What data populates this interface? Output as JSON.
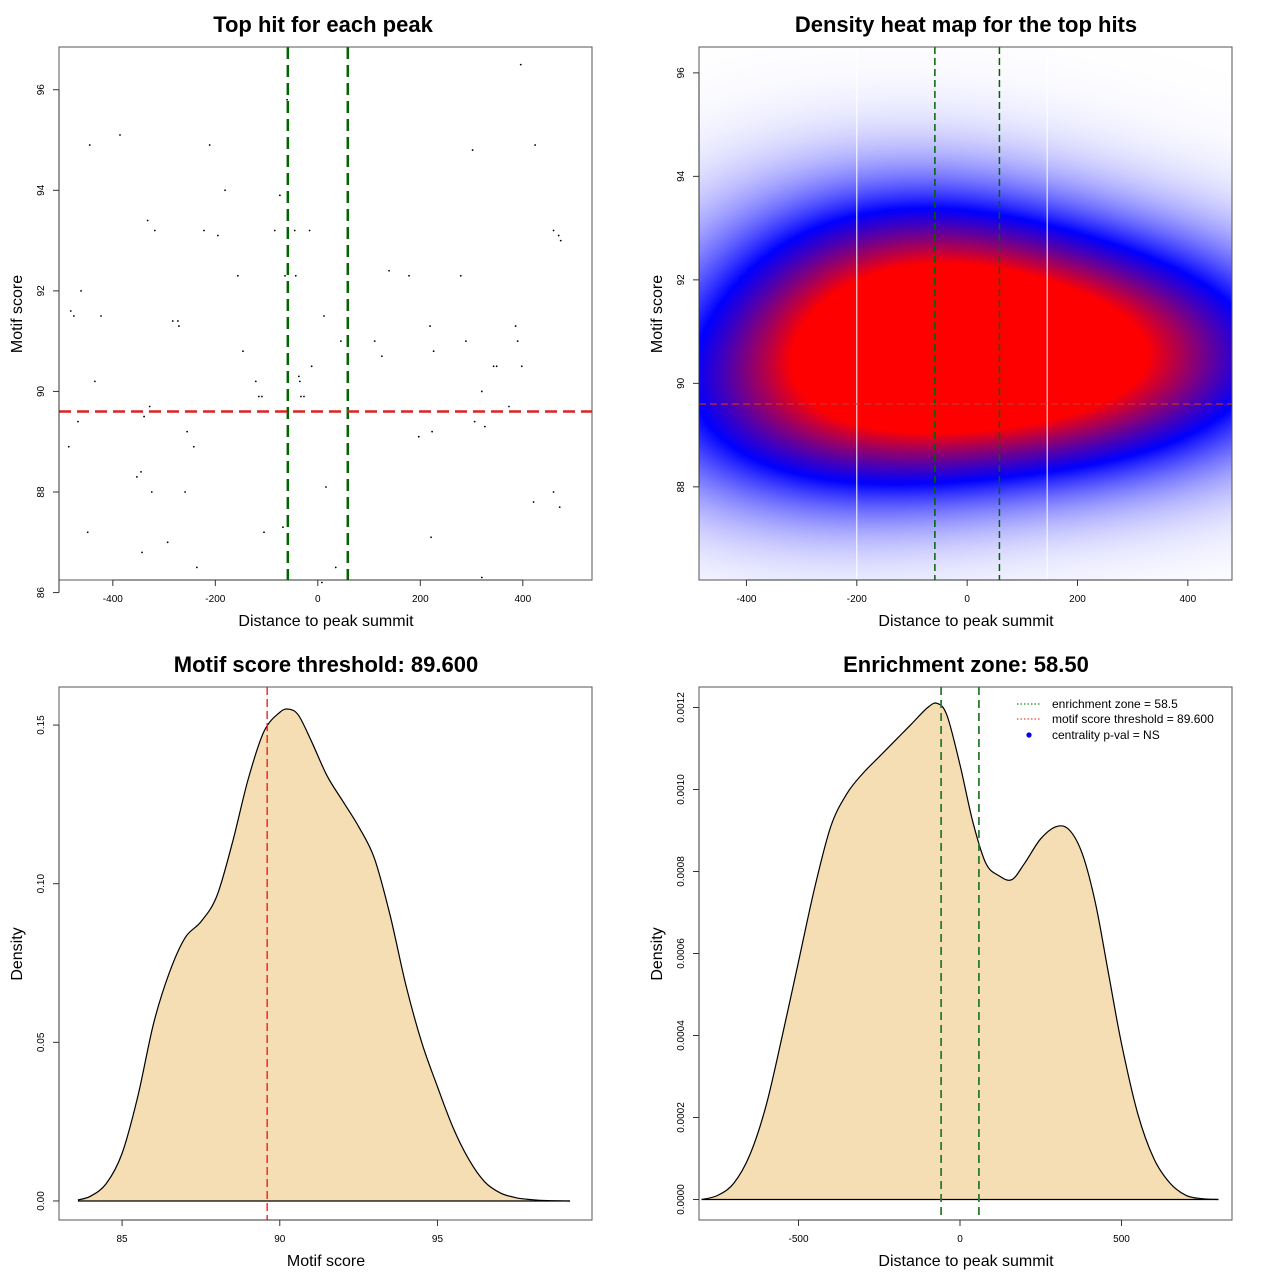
{
  "chart_data": [
    {
      "id": "scatter",
      "type": "scatter",
      "title": "Top hit for each peak",
      "xlabel": "Distance to peak summit",
      "ylabel": "Motif score",
      "xlim": [
        -505,
        535
      ],
      "ylim": [
        86.25,
        96.85
      ],
      "xticks": [
        -400,
        -200,
        0,
        200,
        400
      ],
      "yticks": [
        86,
        88,
        90,
        92,
        94,
        96
      ],
      "grid": false,
      "vlines": {
        "values": [
          -58.5,
          58.5
        ],
        "color": "#006400",
        "style": "dashed"
      },
      "hline": {
        "value": 89.6,
        "color": "#dd2222",
        "style": "dashed"
      },
      "points": [
        [
          -486,
          88.9
        ],
        [
          -482,
          91.6
        ],
        [
          -476,
          91.5
        ],
        [
          -468,
          89.4
        ],
        [
          -462,
          92.0
        ],
        [
          -449,
          87.2
        ],
        [
          -445,
          94.9
        ],
        [
          -435,
          90.2
        ],
        [
          -423,
          91.5
        ],
        [
          -386,
          95.1
        ],
        [
          -353,
          88.3
        ],
        [
          -345,
          88.4
        ],
        [
          -343,
          86.8
        ],
        [
          -339,
          89.5
        ],
        [
          -332,
          93.4
        ],
        [
          -328,
          89.7
        ],
        [
          -324,
          88.0
        ],
        [
          -318,
          93.2
        ],
        [
          -293,
          87.0
        ],
        [
          -283,
          91.4
        ],
        [
          -273,
          91.4
        ],
        [
          -271,
          91.3
        ],
        [
          -259,
          88.0
        ],
        [
          -255,
          89.2
        ],
        [
          -242,
          88.9
        ],
        [
          -236,
          86.5
        ],
        [
          -222,
          93.2
        ],
        [
          -211,
          94.9
        ],
        [
          -195,
          93.1
        ],
        [
          -181,
          94.0
        ],
        [
          -156,
          92.3
        ],
        [
          -146,
          90.8
        ],
        [
          -121,
          90.2
        ],
        [
          -115,
          89.9
        ],
        [
          -109,
          89.9
        ],
        [
          -105,
          87.2
        ],
        [
          -84,
          93.2
        ],
        [
          -74,
          93.9
        ],
        [
          -68,
          87.3
        ],
        [
          -64,
          92.3
        ],
        [
          -60,
          95.8
        ],
        [
          -45,
          93.2
        ],
        [
          -43,
          92.3
        ],
        [
          -37,
          90.3
        ],
        [
          -35,
          90.2
        ],
        [
          -33,
          89.9
        ],
        [
          -27,
          89.9
        ],
        [
          -16,
          93.2
        ],
        [
          -12,
          90.5
        ],
        [
          8,
          86.2
        ],
        [
          12,
          91.5
        ],
        [
          16,
          88.1
        ],
        [
          35,
          86.5
        ],
        [
          45,
          91.0
        ],
        [
          111,
          91.0
        ],
        [
          125,
          90.7
        ],
        [
          139,
          92.4
        ],
        [
          178,
          92.3
        ],
        [
          197,
          89.1
        ],
        [
          219,
          91.3
        ],
        [
          221,
          87.1
        ],
        [
          223,
          89.2
        ],
        [
          226,
          90.8
        ],
        [
          279,
          92.3
        ],
        [
          289,
          91.0
        ],
        [
          302,
          94.8
        ],
        [
          306,
          89.4
        ],
        [
          320,
          90.0
        ],
        [
          320,
          86.3
        ],
        [
          326,
          89.3
        ],
        [
          343,
          90.5
        ],
        [
          349,
          90.5
        ],
        [
          373,
          89.7
        ],
        [
          386,
          91.3
        ],
        [
          390,
          91.0
        ],
        [
          396,
          96.5
        ],
        [
          398,
          90.5
        ],
        [
          421,
          87.8
        ],
        [
          424,
          94.9
        ],
        [
          460,
          88.0
        ],
        [
          460,
          93.2
        ],
        [
          470,
          93.1
        ],
        [
          472,
          87.7
        ],
        [
          474,
          93.0
        ]
      ]
    },
    {
      "id": "heatmap",
      "type": "heatmap",
      "title": "Density heat map for the top hits",
      "xlabel": "Distance to peak summit",
      "ylabel": "Motif score",
      "xlim": [
        -486,
        480
      ],
      "ylim": [
        86.2,
        96.5
      ],
      "xticks": [
        -400,
        -200,
        0,
        200,
        400
      ],
      "yticks": [
        88,
        90,
        92,
        94,
        96
      ],
      "colorscale": [
        "#ffffff",
        "#0000ff",
        "#ff0000"
      ],
      "white_vlines": [
        -200,
        145
      ],
      "vlines": {
        "values": [
          -58.5,
          58.5
        ],
        "color": "#006400",
        "style": "dashed"
      },
      "hline": {
        "value": 89.6,
        "color": "#cc3333",
        "style": "dashed"
      },
      "density_peaks": [
        {
          "x": -25,
          "y": 90.5,
          "weight": 1.0
        },
        {
          "x": 280,
          "y": 90.5,
          "weight": 0.78
        },
        {
          "x": -280,
          "y": 89.6,
          "weight": 0.55
        },
        {
          "x": -120,
          "y": 92.0,
          "weight": 0.55
        }
      ]
    },
    {
      "id": "score-density",
      "type": "area",
      "title": "Motif score threshold: 89.600",
      "xlabel": "Motif score",
      "ylabel": "Density",
      "xlim": [
        83.0,
        99.9
      ],
      "ylim": [
        -0.006,
        0.162
      ],
      "xticks": [
        85,
        90,
        95
      ],
      "yticks": [
        0.0,
        0.05,
        0.1,
        0.15
      ],
      "ytick_labels": [
        "0.00",
        "0.05",
        "0.10",
        "0.15"
      ],
      "fill": "#f5deb3",
      "vline": {
        "value": 89.6,
        "color": "#ee1111",
        "style": "dashed"
      },
      "x": [
        83.6,
        84.0,
        84.5,
        85.0,
        85.5,
        86.0,
        86.5,
        87.0,
        87.5,
        88.0,
        88.5,
        89.0,
        89.5,
        90.0,
        90.3,
        90.6,
        91.0,
        91.5,
        92.0,
        92.5,
        93.0,
        93.5,
        94.0,
        94.5,
        95.0,
        95.5,
        96.0,
        96.5,
        97.0,
        97.5,
        98.0,
        98.5,
        99.2
      ],
      "y": [
        0.0003,
        0.0015,
        0.0055,
        0.015,
        0.033,
        0.056,
        0.072,
        0.083,
        0.088,
        0.096,
        0.113,
        0.133,
        0.148,
        0.154,
        0.155,
        0.153,
        0.145,
        0.134,
        0.126,
        0.118,
        0.108,
        0.09,
        0.068,
        0.05,
        0.036,
        0.023,
        0.013,
        0.006,
        0.0025,
        0.001,
        0.0004,
        0.0001,
        0.0
      ]
    },
    {
      "id": "distance-density",
      "type": "area",
      "title": "Enrichment zone: 58.50",
      "xlabel": "Distance to peak summit",
      "ylabel": "Density",
      "xlim": [
        -808,
        842
      ],
      "ylim": [
        -5e-05,
        0.00125
      ],
      "xticks": [
        -500,
        0,
        500
      ],
      "yticks": [
        0.0,
        0.0002,
        0.0004,
        0.0006,
        0.0008,
        0.001,
        0.0012
      ],
      "ytick_labels": [
        "0.0000",
        "0.0002",
        "0.0004",
        "0.0006",
        "0.0008",
        "0.0010",
        "0.0012"
      ],
      "fill": "#f5deb3",
      "vlines": {
        "values": [
          -58.5,
          58.5
        ],
        "color": "#2e7d2e",
        "style": "dashed"
      },
      "x": [
        -800,
        -750,
        -700,
        -650,
        -600,
        -550,
        -500,
        -450,
        -400,
        -350,
        -300,
        -250,
        -200,
        -150,
        -100,
        -70,
        -40,
        0,
        40,
        80,
        120,
        160,
        200,
        250,
        300,
        340,
        380,
        420,
        460,
        500,
        550,
        600,
        650,
        700,
        750,
        800
      ],
      "y": [
        0.0,
        1e-05,
        4e-05,
        0.00011,
        0.00023,
        0.0004,
        0.00058,
        0.00076,
        0.00091,
        0.00099,
        0.00104,
        0.00108,
        0.00112,
        0.00116,
        0.0012,
        0.00121,
        0.00118,
        0.00106,
        0.00092,
        0.00082,
        0.00079,
        0.00078,
        0.00082,
        0.00088,
        0.00091,
        0.0009,
        0.00084,
        0.00072,
        0.00055,
        0.00038,
        0.00021,
        0.0001,
        4e-05,
        1e-05,
        2e-06,
        0.0
      ]
    }
  ],
  "legend": {
    "items": [
      {
        "label": "enrichment zone = 58.5",
        "color": "#228b22",
        "symbol": "dotted-line"
      },
      {
        "label": "motif score threshold = 89.600",
        "color": "#ee4444",
        "symbol": "dotted-line"
      },
      {
        "label": "centrality p-val = NS",
        "color": "#0000ff",
        "symbol": "dot"
      }
    ]
  }
}
